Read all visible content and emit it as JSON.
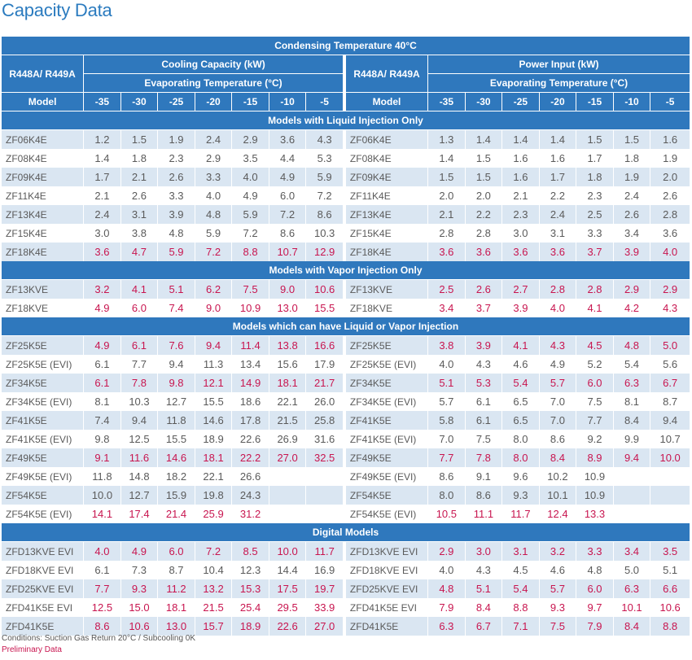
{
  "title": "Capacity Data",
  "header": {
    "condensing": "Condensing Temperature 40°C",
    "refrigerant": "R448A/ R449A",
    "cooling_capacity": "Cooling Capacity (kW)",
    "power_input": "Power Input (kW)",
    "evaporating": "Evaporating Temperature (°C)",
    "model": "Model",
    "temps": [
      "-35",
      "-30",
      "-25",
      "-20",
      "-15",
      "-10",
      "-5"
    ]
  },
  "sections": [
    {
      "title": "Models with Liquid Injection Only",
      "rows": [
        {
          "model": "ZF06K4E",
          "highlight": false,
          "cap": [
            "1.2",
            "1.5",
            "1.9",
            "2.4",
            "2.9",
            "3.6",
            "4.3"
          ],
          "pow": [
            "1.3",
            "1.4",
            "1.4",
            "1.4",
            "1.5",
            "1.5",
            "1.6"
          ]
        },
        {
          "model": "ZF08K4E",
          "highlight": false,
          "cap": [
            "1.4",
            "1.8",
            "2.3",
            "2.9",
            "3.5",
            "4.4",
            "5.3"
          ],
          "pow": [
            "1.4",
            "1.5",
            "1.6",
            "1.6",
            "1.7",
            "1.8",
            "1.9"
          ]
        },
        {
          "model": "ZF09K4E",
          "highlight": false,
          "cap": [
            "1.7",
            "2.1",
            "2.6",
            "3.3",
            "4.0",
            "4.9",
            "5.9"
          ],
          "pow": [
            "1.5",
            "1.5",
            "1.6",
            "1.7",
            "1.8",
            "1.9",
            "2.0"
          ]
        },
        {
          "model": "ZF11K4E",
          "highlight": false,
          "cap": [
            "2.1",
            "2.6",
            "3.3",
            "4.0",
            "4.9",
            "6.0",
            "7.2"
          ],
          "pow": [
            "2.0",
            "2.0",
            "2.1",
            "2.2",
            "2.3",
            "2.4",
            "2.6"
          ]
        },
        {
          "model": "ZF13K4E",
          "highlight": false,
          "cap": [
            "2.4",
            "3.1",
            "3.9",
            "4.8",
            "5.9",
            "7.2",
            "8.6"
          ],
          "pow": [
            "2.1",
            "2.2",
            "2.3",
            "2.4",
            "2.5",
            "2.6",
            "2.8"
          ]
        },
        {
          "model": "ZF15K4E",
          "highlight": false,
          "cap": [
            "3.0",
            "3.8",
            "4.8",
            "5.9",
            "7.2",
            "8.6",
            "10.3"
          ],
          "pow": [
            "2.8",
            "2.8",
            "3.0",
            "3.1",
            "3.3",
            "3.4",
            "3.6"
          ]
        },
        {
          "model": "ZF18K4E",
          "highlight": true,
          "cap": [
            "3.6",
            "4.7",
            "5.9",
            "7.2",
            "8.8",
            "10.7",
            "12.9"
          ],
          "pow": [
            "3.6",
            "3.6",
            "3.6",
            "3.6",
            "3.7",
            "3.9",
            "4.0"
          ]
        }
      ]
    },
    {
      "title": "Models with Vapor Injection Only",
      "rows": [
        {
          "model": "ZF13KVE",
          "highlight": true,
          "cap": [
            "3.2",
            "4.1",
            "5.1",
            "6.2",
            "7.5",
            "9.0",
            "10.6"
          ],
          "pow": [
            "2.5",
            "2.6",
            "2.7",
            "2.8",
            "2.8",
            "2.9",
            "2.9"
          ]
        },
        {
          "model": "ZF18KVE",
          "highlight": true,
          "cap": [
            "4.9",
            "6.0",
            "7.4",
            "9.0",
            "10.9",
            "13.0",
            "15.5"
          ],
          "pow": [
            "3.4",
            "3.7",
            "3.9",
            "4.0",
            "4.1",
            "4.2",
            "4.3"
          ]
        }
      ]
    },
    {
      "title": "Models which can have Liquid or Vapor Injection",
      "rows": [
        {
          "model": "ZF25K5E",
          "highlight": true,
          "cap": [
            "4.9",
            "6.1",
            "7.6",
            "9.4",
            "11.4",
            "13.8",
            "16.6"
          ],
          "pow": [
            "3.8",
            "3.9",
            "4.1",
            "4.3",
            "4.5",
            "4.8",
            "5.0"
          ]
        },
        {
          "model": "ZF25K5E (EVI)",
          "highlight": false,
          "cap": [
            "6.1",
            "7.7",
            "9.4",
            "11.3",
            "13.4",
            "15.6",
            "17.9"
          ],
          "pow": [
            "4.0",
            "4.3",
            "4.6",
            "4.9",
            "5.2",
            "5.4",
            "5.6"
          ]
        },
        {
          "model": "ZF34K5E",
          "highlight": true,
          "cap": [
            "6.1",
            "7.8",
            "9.8",
            "12.1",
            "14.9",
            "18.1",
            "21.7"
          ],
          "pow": [
            "5.1",
            "5.3",
            "5.4",
            "5.7",
            "6.0",
            "6.3",
            "6.7"
          ]
        },
        {
          "model": "ZF34K5E (EVI)",
          "highlight": false,
          "cap": [
            "8.1",
            "10.3",
            "12.7",
            "15.5",
            "18.6",
            "22.1",
            "26.0"
          ],
          "pow": [
            "5.7",
            "6.1",
            "6.5",
            "7.0",
            "7.5",
            "8.1",
            "8.7"
          ]
        },
        {
          "model": "ZF41K5E",
          "highlight": false,
          "cap": [
            "7.4",
            "9.4",
            "11.8",
            "14.6",
            "17.8",
            "21.5",
            "25.8"
          ],
          "pow": [
            "5.8",
            "6.1",
            "6.5",
            "7.0",
            "7.7",
            "8.4",
            "9.4"
          ]
        },
        {
          "model": "ZF41K5E (EVI)",
          "highlight": false,
          "cap": [
            "9.8",
            "12.5",
            "15.5",
            "18.9",
            "22.6",
            "26.9",
            "31.6"
          ],
          "pow": [
            "7.0",
            "7.5",
            "8.0",
            "8.6",
            "9.2",
            "9.9",
            "10.7"
          ]
        },
        {
          "model": "ZF49K5E",
          "highlight": true,
          "cap": [
            "9.1",
            "11.6",
            "14.6",
            "18.1",
            "22.2",
            "27.0",
            "32.5"
          ],
          "pow": [
            "7.7",
            "7.8",
            "8.0",
            "8.4",
            "8.9",
            "9.4",
            "10.0"
          ]
        },
        {
          "model": "ZF49K5E (EVI)",
          "highlight": false,
          "cap": [
            "11.8",
            "14.8",
            "18.2",
            "22.1",
            "26.6",
            "",
            ""
          ],
          "pow": [
            "8.6",
            "9.1",
            "9.6",
            "10.2",
            "10.9",
            "",
            ""
          ]
        },
        {
          "model": "ZF54K5E",
          "highlight": false,
          "cap": [
            "10.0",
            "12.7",
            "15.9",
            "19.8",
            "24.3",
            "",
            ""
          ],
          "pow": [
            "8.0",
            "8.6",
            "9.3",
            "10.1",
            "10.9",
            "",
            ""
          ]
        },
        {
          "model": "ZF54K5E (EVI)",
          "highlight": true,
          "cap": [
            "14.1",
            "17.4",
            "21.4",
            "25.9",
            "31.2",
            "",
            ""
          ],
          "pow": [
            "10.5",
            "11.1",
            "11.7",
            "12.4",
            "13.3",
            "",
            ""
          ]
        }
      ]
    },
    {
      "title": "Digital Models",
      "rows": [
        {
          "model": "ZFD13KVE EVI",
          "highlight": true,
          "cap": [
            "4.0",
            "4.9",
            "6.0",
            "7.2",
            "8.5",
            "10.0",
            "11.7"
          ],
          "pow": [
            "2.9",
            "3.0",
            "3.1",
            "3.2",
            "3.3",
            "3.4",
            "3.5"
          ]
        },
        {
          "model": "ZFD18KVE EVI",
          "highlight": false,
          "cap": [
            "6.1",
            "7.3",
            "8.7",
            "10.4",
            "12.3",
            "14.4",
            "16.9"
          ],
          "pow": [
            "4.0",
            "4.3",
            "4.5",
            "4.6",
            "4.8",
            "5.0",
            "5.1"
          ]
        },
        {
          "model": "ZFD25KVE EVI",
          "highlight": true,
          "cap": [
            "7.7",
            "9.3",
            "11.2",
            "13.2",
            "15.3",
            "17.5",
            "19.7"
          ],
          "pow": [
            "4.8",
            "5.1",
            "5.4",
            "5.7",
            "6.0",
            "6.3",
            "6.6"
          ]
        },
        {
          "model": "ZFD41K5E EVI",
          "highlight": true,
          "cap": [
            "12.5",
            "15.0",
            "18.1",
            "21.5",
            "25.4",
            "29.5",
            "33.9"
          ],
          "pow": [
            "7.9",
            "8.4",
            "8.8",
            "9.3",
            "9.7",
            "10.1",
            "10.6"
          ]
        },
        {
          "model": "ZFD41K5E",
          "highlight": true,
          "cap": [
            "8.6",
            "10.6",
            "13.0",
            "15.7",
            "18.9",
            "22.6",
            "27.0"
          ],
          "pow": [
            "6.3",
            "6.7",
            "7.1",
            "7.5",
            "7.9",
            "8.4",
            "8.8"
          ]
        }
      ]
    }
  ],
  "footer": {
    "conditions": "Conditions: Suction Gas Return 20°C / Subcooling 0K",
    "preliminary": "Preliminary Data"
  },
  "colors": {
    "title": "#2b7bbf",
    "header_bg": "#2f78bd",
    "row_shade": "#dae6f2",
    "highlight_text": "#c8154f",
    "normal_text": "#5a5a5a"
  }
}
